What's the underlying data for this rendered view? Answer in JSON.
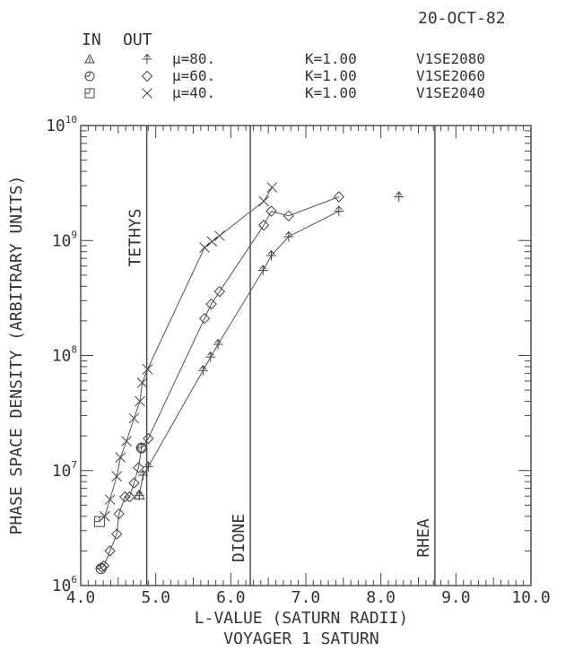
{
  "chart_data": {
    "type": "scatter",
    "date": "20-OCT-82",
    "title": "VOYAGER 1 SATURN",
    "xlabel": "L-VALUE (SATURN RADII)",
    "ylabel": "PHASE SPACE DENSITY (ARBITRARY UNITS)",
    "xlim": [
      4.0,
      10.0
    ],
    "ylim": [
      1000000.0,
      10000000000.0
    ],
    "yscale": "log",
    "x_ticks": [
      "4.0",
      "5.0",
      "6.0",
      "7.0",
      "8.0",
      "9.0",
      "10.0"
    ],
    "y_ticks": [
      {
        "base": "10",
        "exp": "6"
      },
      {
        "base": "10",
        "exp": "7"
      },
      {
        "base": "10",
        "exp": "8"
      },
      {
        "base": "10",
        "exp": "9"
      },
      {
        "base": "10",
        "exp": "10"
      }
    ],
    "legend": {
      "header_in": "IN",
      "header_out": "OUT",
      "entries": [
        {
          "in_marker": "triangle",
          "out_marker": "arrow-plus",
          "mu": "μ=80.",
          "k": "K=1.00",
          "id": "V1SE2080"
        },
        {
          "in_marker": "circle-bar",
          "out_marker": "diamond",
          "mu": "μ=60.",
          "k": "K=1.00",
          "id": "V1SE2060"
        },
        {
          "in_marker": "square-bar",
          "out_marker": "x",
          "mu": "μ=40.",
          "k": "K=1.00",
          "id": "V1SE2040"
        }
      ]
    },
    "moons": [
      {
        "name": "TETHYS",
        "L": 4.88
      },
      {
        "name": "DIONE",
        "L": 6.26
      },
      {
        "name": "RHEA",
        "L": 8.72
      }
    ],
    "series": [
      {
        "name": "μ=80.",
        "marker": "arrow-plus",
        "connected": true,
        "x": [
          4.78,
          4.83,
          4.9,
          5.63,
          5.73,
          5.83,
          6.43,
          6.54,
          6.77,
          7.44
        ],
        "y": [
          6100000.0,
          9100000.0,
          10800000.0,
          74000000.0,
          97000000.0,
          125000000.0,
          550000000.0,
          740000000.0,
          1080000000.0,
          1800000000.0
        ]
      },
      {
        "name": "μ=80.",
        "marker": "arrow-plus",
        "connected": false,
        "x": [
          8.24
        ],
        "y": [
          2400000000.0
        ]
      },
      {
        "name": "μ=60.",
        "marker": "diamond",
        "connected": true,
        "x": [
          4.28,
          4.31,
          4.39,
          4.48,
          4.51,
          4.59,
          4.65,
          4.71,
          4.77,
          4.81,
          4.9,
          5.65,
          5.74,
          5.85,
          6.44,
          6.54,
          6.77,
          7.44
        ],
        "y": [
          1440000.0,
          1480000.0,
          2000000.0,
          2800000.0,
          4200000.0,
          5900000.0,
          5900000.0,
          7800000.0,
          10600000.0,
          15700000.0,
          19000000.0,
          210000000.0,
          280000000.0,
          360000000.0,
          1360000000.0,
          1800000000.0,
          1640000000.0,
          2400000000.0
        ]
      },
      {
        "name": "μ=40.",
        "marker": "x",
        "connected": true,
        "x": [
          4.32,
          4.39,
          4.48,
          4.53,
          4.61,
          4.71,
          4.79,
          4.82,
          4.89,
          5.65,
          5.75,
          5.85,
          6.44,
          6.55
        ],
        "y": [
          4000000.0,
          5600000.0,
          8900000.0,
          13000000.0,
          18000000.0,
          28500000.0,
          40000000.0,
          58000000.0,
          76000000.0,
          870000000.0,
          980000000.0,
          1100000000.0,
          2200000000.0,
          2900000000.0
        ]
      },
      {
        "name": "IN μ=80.",
        "marker": "triangle",
        "connected": false,
        "x": [
          4.78
        ],
        "y": [
          6100000.0
        ]
      },
      {
        "name": "IN μ=60.",
        "marker": "circle-bar",
        "connected": false,
        "x": [
          4.27,
          4.81
        ],
        "y": [
          1400000.0,
          15700000.0
        ]
      },
      {
        "name": "IN μ=40.",
        "marker": "square-bar",
        "connected": false,
        "x": [
          4.25
        ],
        "y": [
          3600000.0
        ]
      }
    ],
    "grid": false
  }
}
